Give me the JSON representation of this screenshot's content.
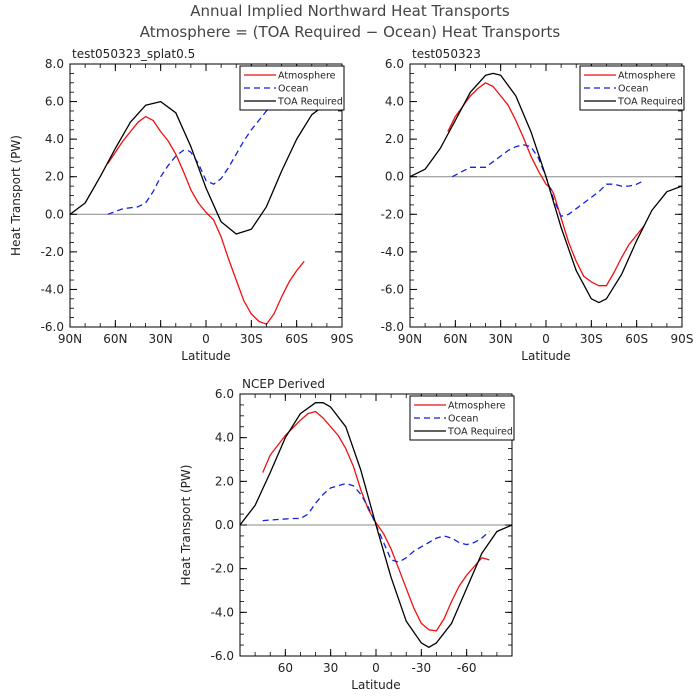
{
  "figure": {
    "title_line1": "Annual Implied Northward Heat Transports",
    "title_line2": "Atmosphere = (TOA Required − Ocean) Heat Transports"
  },
  "colors": {
    "atmosphere": "#ee1111",
    "ocean": "#1122dd",
    "toa": "#000000",
    "zero_line": "#888888"
  },
  "chart_data": [
    {
      "type": "line",
      "title": "test050323_splat0.5",
      "xlabel": "Latitude",
      "ylabel": "Heat Transport (PW)",
      "xlim": [
        90,
        -90
      ],
      "ylim": [
        -6,
        8
      ],
      "yticks": [
        8,
        6,
        4,
        2,
        0,
        -2,
        -4,
        -6
      ],
      "ytick_labels": [
        "8.0",
        "6.0",
        "4.0",
        "2.0",
        "0.0",
        "-2.0",
        "-4.0",
        "-6.0"
      ],
      "xticks": [
        90,
        60,
        30,
        0,
        -30,
        -60,
        -90
      ],
      "xtick_labels": [
        "90N",
        "60N",
        "30N",
        "0",
        "30S",
        "60S",
        "90S"
      ],
      "legend": [
        "Atmosphere",
        "Ocean",
        "TOA Required"
      ],
      "legend_position": "top-right",
      "series": [
        {
          "name": "Atmosphere",
          "style": "solid",
          "color": "#ee1111",
          "x": [
            65,
            55,
            45,
            40,
            35,
            30,
            25,
            20,
            15,
            10,
            5,
            0,
            -5,
            -10,
            -15,
            -20,
            -25,
            -30,
            -35,
            -40,
            -45,
            -50,
            -55,
            -60,
            -65
          ],
          "y": [
            2.7,
            3.9,
            4.9,
            5.2,
            5.0,
            4.4,
            3.9,
            3.2,
            2.3,
            1.3,
            0.6,
            0.1,
            -0.3,
            -1.2,
            -2.4,
            -3.5,
            -4.6,
            -5.3,
            -5.7,
            -5.85,
            -5.3,
            -4.4,
            -3.6,
            -3.0,
            -2.5
          ]
        },
        {
          "name": "Ocean",
          "style": "dashed",
          "color": "#1122dd",
          "x": [
            65,
            55,
            45,
            40,
            35,
            30,
            25,
            20,
            15,
            12,
            10,
            5,
            0,
            -5,
            -10,
            -15,
            -20,
            -25,
            -30,
            -35,
            -40,
            -45,
            -50,
            -55,
            -60,
            -65
          ],
          "y": [
            0.0,
            0.3,
            0.4,
            0.6,
            1.2,
            2.0,
            2.6,
            3.1,
            3.4,
            3.4,
            3.3,
            2.7,
            1.8,
            1.6,
            1.9,
            2.5,
            3.2,
            3.9,
            4.5,
            5.0,
            5.5,
            5.9,
            6.1,
            6.2,
            6.2,
            6.2
          ]
        },
        {
          "name": "TOA Required",
          "style": "solid",
          "color": "#000000",
          "x": [
            90,
            80,
            70,
            60,
            50,
            40,
            30,
            20,
            10,
            0,
            -10,
            -20,
            -30,
            -40,
            -50,
            -60,
            -70,
            -80,
            -90
          ],
          "y": [
            0.0,
            0.6,
            2.0,
            3.5,
            4.9,
            5.8,
            6.0,
            5.4,
            3.6,
            1.4,
            -0.4,
            -1.05,
            -0.8,
            0.4,
            2.3,
            4.0,
            5.3,
            5.9,
            6.0
          ]
        }
      ]
    },
    {
      "type": "line",
      "title": "test050323",
      "xlabel": "Latitude",
      "ylabel": "",
      "xlim": [
        90,
        -90
      ],
      "ylim": [
        -8,
        6
      ],
      "yticks": [
        6,
        4,
        2,
        0,
        -2,
        -4,
        -6,
        -8
      ],
      "ytick_labels": [
        "6.0",
        "4.0",
        "2.0",
        "0.0",
        "-2.0",
        "-4.0",
        "-6.0",
        "-8.0"
      ],
      "xticks": [
        90,
        60,
        30,
        0,
        -30,
        -60,
        -90
      ],
      "xtick_labels": [
        "90N",
        "60N",
        "30N",
        "0",
        "30S",
        "60S",
        "90S"
      ],
      "legend": [
        "Atmosphere",
        "Ocean",
        "TOA Required"
      ],
      "legend_position": "top-right",
      "series": [
        {
          "name": "Atmosphere",
          "style": "solid",
          "color": "#ee1111",
          "x": [
            65,
            60,
            50,
            45,
            40,
            35,
            30,
            25,
            20,
            15,
            10,
            5,
            0,
            -3,
            -5,
            -10,
            -15,
            -20,
            -25,
            -30,
            -35,
            -40,
            -45,
            -50,
            -55,
            -60,
            -65
          ],
          "y": [
            2.4,
            3.2,
            4.3,
            4.7,
            5.0,
            4.8,
            4.3,
            3.8,
            3.0,
            2.1,
            1.1,
            0.3,
            -0.4,
            -0.6,
            -0.9,
            -2.2,
            -3.5,
            -4.5,
            -5.3,
            -5.6,
            -5.8,
            -5.8,
            -5.1,
            -4.3,
            -3.6,
            -3.1,
            -2.6
          ]
        },
        {
          "name": "Ocean",
          "style": "dashed",
          "color": "#1122dd",
          "x": [
            62,
            55,
            50,
            45,
            40,
            35,
            30,
            25,
            20,
            15,
            10,
            5,
            0,
            -5,
            -10,
            -15,
            -20,
            -25,
            -30,
            -35,
            -40,
            -45,
            -50,
            -55,
            -60,
            -65
          ],
          "y": [
            0.0,
            0.3,
            0.5,
            0.5,
            0.5,
            0.8,
            1.1,
            1.4,
            1.6,
            1.7,
            1.6,
            1.0,
            0.0,
            -1.2,
            -2.1,
            -2.0,
            -1.7,
            -1.4,
            -1.1,
            -0.8,
            -0.4,
            -0.4,
            -0.5,
            -0.5,
            -0.4,
            -0.2
          ]
        },
        {
          "name": "TOA Required",
          "style": "solid",
          "color": "#000000",
          "x": [
            90,
            80,
            70,
            60,
            50,
            40,
            35,
            30,
            20,
            10,
            0,
            -10,
            -20,
            -30,
            -35,
            -40,
            -50,
            -60,
            -70,
            -80,
            -90
          ],
          "y": [
            0.0,
            0.4,
            1.5,
            3.0,
            4.5,
            5.4,
            5.5,
            5.4,
            4.3,
            2.4,
            0.0,
            -2.7,
            -5.0,
            -6.5,
            -6.7,
            -6.5,
            -5.2,
            -3.4,
            -1.8,
            -0.8,
            -0.5
          ]
        }
      ]
    },
    {
      "type": "line",
      "title": "NCEP Derived",
      "xlabel": "Latitude",
      "ylabel": "Heat Transport (PW)",
      "xlim": [
        90,
        -90
      ],
      "ylim": [
        -6,
        6
      ],
      "yticks": [
        6,
        4,
        2,
        0,
        -2,
        -4,
        -6
      ],
      "ytick_labels": [
        "6.0",
        "4.0",
        "2.0",
        "0.0",
        "-2.0",
        "-4.0",
        "-6.0"
      ],
      "xticks": [
        60,
        30,
        0,
        -30,
        -60
      ],
      "xtick_labels": [
        "60",
        "30",
        "0",
        "-30",
        "-60"
      ],
      "legend": [
        "Atmosphere",
        "Ocean",
        "TOA Required"
      ],
      "legend_position": "top-right",
      "series": [
        {
          "name": "Atmosphere",
          "style": "solid",
          "color": "#ee1111",
          "x": [
            75,
            70,
            60,
            50,
            45,
            40,
            35,
            30,
            25,
            20,
            15,
            10,
            5,
            0,
            -5,
            -10,
            -15,
            -20,
            -25,
            -30,
            -35,
            -40,
            -45,
            -50,
            -55,
            -60,
            -65,
            -70,
            -75
          ],
          "y": [
            2.4,
            3.2,
            4.1,
            4.8,
            5.1,
            5.2,
            4.9,
            4.5,
            4.1,
            3.5,
            2.7,
            1.6,
            0.7,
            0.1,
            -0.4,
            -1.1,
            -2.0,
            -2.9,
            -3.8,
            -4.5,
            -4.8,
            -4.85,
            -4.3,
            -3.5,
            -2.8,
            -2.3,
            -1.9,
            -1.5,
            -1.6
          ]
        },
        {
          "name": "Ocean",
          "style": "dashed",
          "color": "#1122dd",
          "x": [
            75,
            65,
            55,
            50,
            45,
            40,
            35,
            30,
            25,
            20,
            15,
            10,
            5,
            0,
            -5,
            -10,
            -15,
            -20,
            -25,
            -30,
            -35,
            -40,
            -45,
            -50,
            -55,
            -60,
            -65,
            -70,
            -75
          ],
          "y": [
            0.2,
            0.25,
            0.3,
            0.3,
            0.5,
            1.0,
            1.4,
            1.7,
            1.8,
            1.9,
            1.8,
            1.4,
            0.8,
            0.0,
            -0.8,
            -1.6,
            -1.7,
            -1.5,
            -1.2,
            -1.0,
            -0.8,
            -0.6,
            -0.5,
            -0.6,
            -0.8,
            -0.9,
            -0.8,
            -0.6,
            -0.3
          ]
        },
        {
          "name": "TOA Required",
          "style": "solid",
          "color": "#000000",
          "x": [
            90,
            80,
            70,
            60,
            50,
            40,
            35,
            30,
            20,
            10,
            0,
            -10,
            -20,
            -30,
            -35,
            -40,
            -50,
            -60,
            -70,
            -80,
            -90
          ],
          "y": [
            0.0,
            0.9,
            2.4,
            4.0,
            5.1,
            5.6,
            5.6,
            5.4,
            4.5,
            2.5,
            0.0,
            -2.4,
            -4.4,
            -5.4,
            -5.6,
            -5.4,
            -4.5,
            -2.9,
            -1.3,
            -0.3,
            0.0
          ]
        }
      ]
    }
  ]
}
